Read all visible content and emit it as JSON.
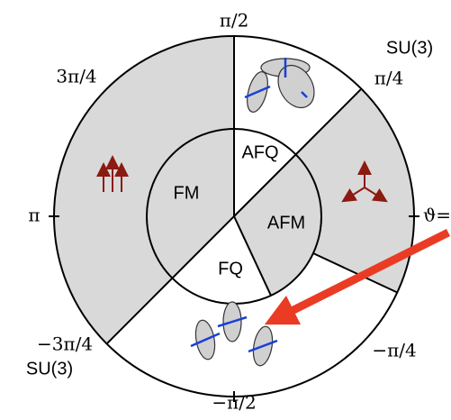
{
  "angle_labels": {
    "top": "π/2",
    "upper_left": "3π/4",
    "upper_right": "π/4",
    "left": "π",
    "right": "ϑ=",
    "lower_right": "−π/4",
    "lower_left": "−3π/4",
    "bottom": "−π/2"
  },
  "su3_labels": [
    "SU(3)",
    "SU(3)"
  ],
  "phases": {
    "fm": "FM",
    "afq": "AFQ",
    "afm": "AFM",
    "fq": "FQ"
  }
}
